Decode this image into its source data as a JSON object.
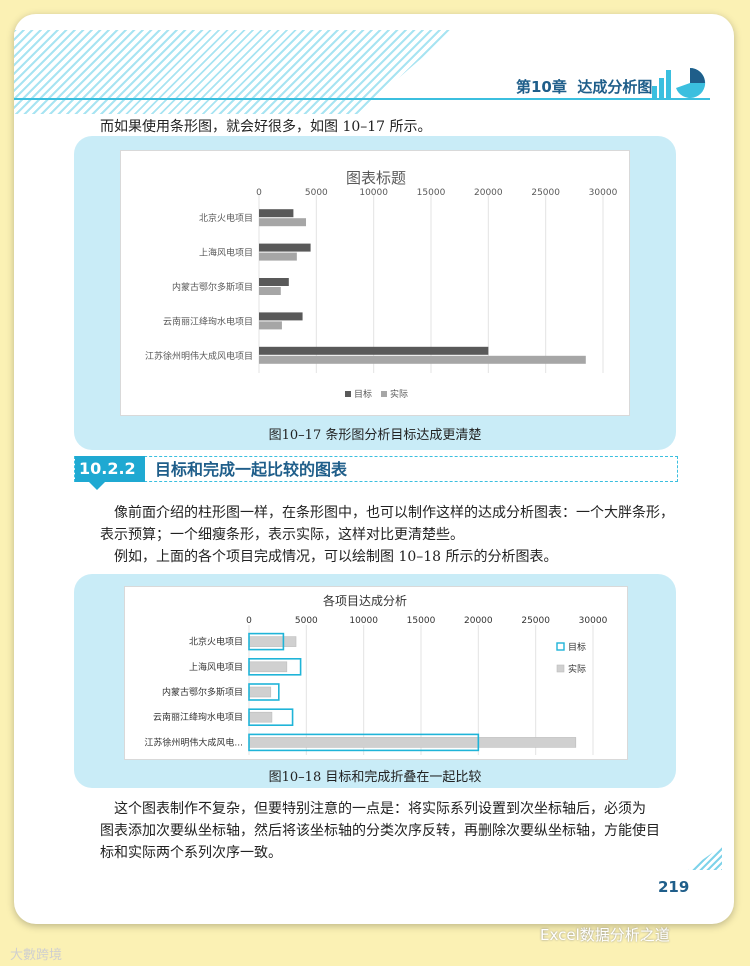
{
  "header": {
    "chapter_title": "第10章  达成分析图"
  },
  "intro_para": "而如果使用条形图，就会好很多，如图 10–17 所示。",
  "figure1": {
    "caption": "图10–17  条形图分析目标达成更清楚"
  },
  "section": {
    "number": "10.2.2",
    "title": "目标和完成一起比较的图表"
  },
  "para2_line1": "像前面介绍的柱形图一样，在条形图中，也可以制作这样的达成分析图表：一个大胖条形，",
  "para2_line2": "表示预算；一个细瘦条形，表示实际，这样对比更清楚些。",
  "para3": "例如，上面的各个项目完成情况，可以绘制图 10–18 所示的分析图表。",
  "figure2": {
    "caption": "图10–18  目标和完成折叠在一起比较"
  },
  "para4_line1": "这个图表制作不复杂，但要特别注意的一点是：将实际系列设置到次坐标轴后，必须为",
  "para4_line2": "图表添加次要纵坐标轴，然后将该坐标轴的分类次序反转，再删除次要纵坐标轴，方能使目",
  "para4_line3": "标和实际两个系列次序一致。",
  "page_number": "219",
  "watermark_left": "大數跨境",
  "watermark_right": "Excel数据分析之道",
  "chart_data": [
    {
      "type": "bar",
      "title": "图表标题",
      "categories": [
        "北京火电项目",
        "上海风电项目",
        "内蒙古鄂尔多斯项目",
        "云南丽江绛珣水电项目",
        "江苏徐州明伟大成风电项目"
      ],
      "series": [
        {
          "name": "目标",
          "values": [
            3000,
            4500,
            2600,
            3800,
            20000
          ],
          "color": "#595959"
        },
        {
          "name": "实际",
          "values": [
            4100,
            3300,
            1900,
            2000,
            28500
          ],
          "color": "#a6a6a6"
        }
      ],
      "xlim": [
        0,
        30000
      ],
      "ticks": [
        0,
        5000,
        10000,
        15000,
        20000,
        25000,
        30000
      ],
      "legend": "bottom",
      "grid": true
    },
    {
      "type": "bar",
      "title": "各项目达成分析",
      "categories": [
        "北京火电项目",
        "上海风电项目",
        "内蒙古鄂尔多斯项目",
        "云南丽江绛珣水电项目",
        "江苏徐州明伟大成风电..."
      ],
      "series": [
        {
          "name": "目标",
          "values": [
            3000,
            4500,
            2600,
            3800,
            20000
          ],
          "color": "#1fb4d8"
        },
        {
          "name": "实际",
          "values": [
            4100,
            3300,
            1900,
            2000,
            28500
          ],
          "color": "#d0d0d0"
        }
      ],
      "xlim": [
        0,
        30000
      ],
      "ticks": [
        0,
        5000,
        10000,
        15000,
        20000,
        25000,
        30000
      ],
      "legend": "right",
      "grid": true
    }
  ]
}
